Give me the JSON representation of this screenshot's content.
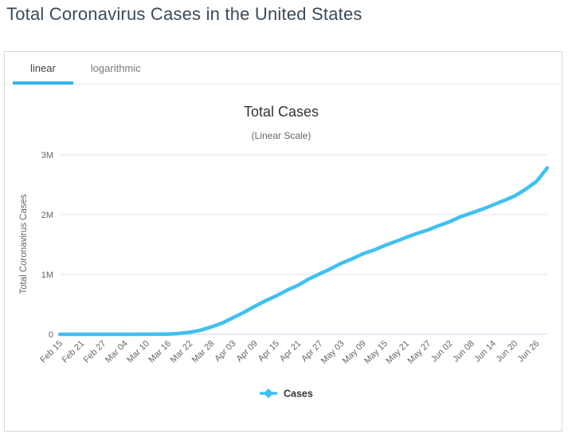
{
  "page": {
    "title": "Total Coronavirus Cases in the United States"
  },
  "tabs": [
    {
      "label": "linear",
      "active": true
    },
    {
      "label": "logarithmic",
      "active": false
    }
  ],
  "colors": {
    "accent": "#3fc1f0",
    "tab_underline": "#35b7ea",
    "page_title": "#3b4a58",
    "chart_title": "#333333",
    "subtitle_text": "#666666",
    "axis_label": "#666666",
    "gridline": "#e6e6e6",
    "axis_line": "#ccd6eb",
    "legend_text": "#333333"
  },
  "chart_data": {
    "type": "line",
    "title": "Total Cases",
    "subtitle": "(Linear Scale)",
    "xlabel": "",
    "ylabel": "Total Coronavirus Cases",
    "ylim": [
      0,
      3000000
    ],
    "y_ticks": [
      "0",
      "1M",
      "2M",
      "3M"
    ],
    "x_tick_labels": [
      "Feb 15",
      "Feb 21",
      "Feb 27",
      "Mar 04",
      "Mar 10",
      "Mar 16",
      "Mar 22",
      "Mar 28",
      "Apr 03",
      "Apr 09",
      "Apr 15",
      "Apr 21",
      "Apr 27",
      "May 03",
      "May 09",
      "May 15",
      "May 21",
      "May 27",
      "Jun 02",
      "Jun 08",
      "Jun 14",
      "Jun 20",
      "Jun 26"
    ],
    "x_tick_interval_days": 6,
    "x_range_days": 135,
    "grid": "horizontal",
    "legend_position": "bottom",
    "series": [
      {
        "name": "Cases",
        "color": "#3fc1f0",
        "points": [
          {
            "date": "Feb 15",
            "day": 0,
            "value": 15
          },
          {
            "date": "Feb 18",
            "day": 3,
            "value": 25
          },
          {
            "date": "Feb 21",
            "day": 6,
            "value": 35
          },
          {
            "date": "Feb 24",
            "day": 9,
            "value": 53
          },
          {
            "date": "Feb 27",
            "day": 12,
            "value": 60
          },
          {
            "date": "Mar 01",
            "day": 15,
            "value": 89
          },
          {
            "date": "Mar 04",
            "day": 18,
            "value": 158
          },
          {
            "date": "Mar 07",
            "day": 21,
            "value": 435
          },
          {
            "date": "Mar 10",
            "day": 24,
            "value": 1025
          },
          {
            "date": "Mar 13",
            "day": 27,
            "value": 2270
          },
          {
            "date": "Mar 16",
            "day": 30,
            "value": 4632
          },
          {
            "date": "Mar 19",
            "day": 33,
            "value": 13790
          },
          {
            "date": "Mar 22",
            "day": 36,
            "value": 33550
          },
          {
            "date": "Mar 25",
            "day": 39,
            "value": 68210
          },
          {
            "date": "Mar 28",
            "day": 42,
            "value": 123780
          },
          {
            "date": "Mar 31",
            "day": 45,
            "value": 188170
          },
          {
            "date": "Apr 03",
            "day": 48,
            "value": 277950
          },
          {
            "date": "Apr 06",
            "day": 51,
            "value": 367000
          },
          {
            "date": "Apr 09",
            "day": 54,
            "value": 468570
          },
          {
            "date": "Apr 12",
            "day": 57,
            "value": 560430
          },
          {
            "date": "Apr 15",
            "day": 60,
            "value": 644090
          },
          {
            "date": "Apr 18",
            "day": 63,
            "value": 738790
          },
          {
            "date": "Apr 21",
            "day": 66,
            "value": 818740
          },
          {
            "date": "Apr 24",
            "day": 69,
            "value": 925040
          },
          {
            "date": "Apr 27",
            "day": 72,
            "value": 1010360
          },
          {
            "date": "Apr 30",
            "day": 75,
            "value": 1095020
          },
          {
            "date": "May 03",
            "day": 78,
            "value": 1188120
          },
          {
            "date": "May 06",
            "day": 81,
            "value": 1263180
          },
          {
            "date": "May 09",
            "day": 84,
            "value": 1347310
          },
          {
            "date": "May 12",
            "day": 87,
            "value": 1408640
          },
          {
            "date": "May 15",
            "day": 90,
            "value": 1484290
          },
          {
            "date": "May 18",
            "day": 93,
            "value": 1550290
          },
          {
            "date": "May 21",
            "day": 96,
            "value": 1620900
          },
          {
            "date": "May 24",
            "day": 99,
            "value": 1686440
          },
          {
            "date": "May 27",
            "day": 102,
            "value": 1745800
          },
          {
            "date": "May 30",
            "day": 105,
            "value": 1816820
          },
          {
            "date": "Jun 02",
            "day": 108,
            "value": 1881210
          },
          {
            "date": "Jun 05",
            "day": 111,
            "value": 1965910
          },
          {
            "date": "Jun 08",
            "day": 114,
            "value": 2026490
          },
          {
            "date": "Jun 11",
            "day": 117,
            "value": 2089700
          },
          {
            "date": "Jun 14",
            "day": 120,
            "value": 2162260
          },
          {
            "date": "Jun 17",
            "day": 123,
            "value": 2234470
          },
          {
            "date": "Jun 20",
            "day": 126,
            "value": 2312300
          },
          {
            "date": "Jun 23",
            "day": 129,
            "value": 2424170
          },
          {
            "date": "Jun 26",
            "day": 132,
            "value": 2553000
          },
          {
            "date": "Jun 29",
            "day": 135,
            "value": 2780000
          }
        ]
      }
    ]
  }
}
